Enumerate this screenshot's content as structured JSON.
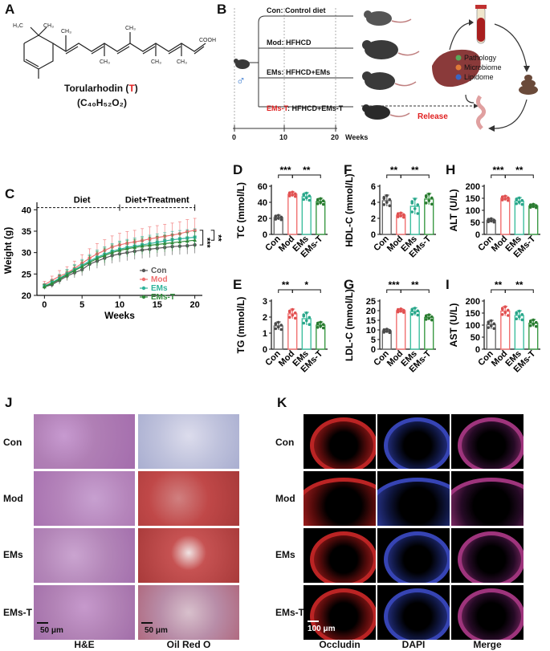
{
  "panels": {
    "A": "A",
    "B": "B",
    "C": "C",
    "D": "D",
    "E": "E",
    "F": "F",
    "G": "G",
    "H": "H",
    "I": "I",
    "J": "J",
    "K": "K"
  },
  "panel_a": {
    "name_prefix": "Torularhodin (",
    "name_letter": "T",
    "name_suffix": ")",
    "formula": "(C₄₀H₅₂O₂)",
    "cooh": "COOH",
    "ch3": "CH₃",
    "h3c": "H₃C"
  },
  "panel_b": {
    "groups": [
      {
        "label": "Con: Control diet",
        "color": "#111111"
      },
      {
        "label": "Mod: HFHCD",
        "color": "#111111"
      },
      {
        "label": "EMs: HFHCD+EMs",
        "color": "#111111"
      },
      {
        "label_red": "EMs-T",
        "label_rest": ": HFHCD+EMs-T"
      }
    ],
    "release": "Release",
    "axis_label": "Weeks",
    "ticks": [
      "0",
      "10",
      "20"
    ],
    "legend": [
      {
        "label": "Pathology",
        "color": "#5aa85a"
      },
      {
        "label": "Microbiome",
        "color": "#e07a38"
      },
      {
        "label": "Lipidome",
        "color": "#3a66c4"
      }
    ],
    "male_symbol": "♂"
  },
  "chart_data": [
    {
      "type": "line",
      "panel": "C",
      "ylabel": "Weight (g)",
      "xlabel": "Weeks",
      "x": [
        0,
        1,
        2,
        3,
        4,
        5,
        6,
        7,
        8,
        9,
        10,
        11,
        12,
        13,
        14,
        15,
        16,
        17,
        18,
        19,
        20
      ],
      "xticks": [
        "0",
        "5",
        "10",
        "15",
        "20"
      ],
      "yticks": [
        "20",
        "25",
        "30",
        "35",
        "40"
      ],
      "ylim": [
        20,
        41
      ],
      "xlim": [
        -1,
        21
      ],
      "phases": [
        "Diet",
        "Diet+Treatment"
      ],
      "significance": [
        "***",
        "**"
      ],
      "series": [
        {
          "name": "Con",
          "color": "#555555",
          "marker": "circle",
          "values": [
            22.0,
            22.5,
            23.5,
            24.5,
            25.3,
            26.0,
            27.3,
            28.0,
            28.7,
            29.3,
            29.7,
            30.0,
            30.3,
            30.6,
            30.8,
            31.0,
            31.2,
            31.4,
            31.5,
            31.6,
            31.8
          ]
        },
        {
          "name": "Mod",
          "color": "#f07070",
          "marker": "circle",
          "values": [
            22.5,
            23.5,
            24.5,
            25.2,
            26.3,
            27.5,
            28.7,
            29.7,
            30.5,
            31.3,
            31.8,
            32.2,
            32.5,
            32.8,
            33.2,
            33.5,
            33.8,
            34.1,
            34.4,
            34.9,
            35.2
          ]
        },
        {
          "name": "EMs",
          "color": "#2fb39a",
          "marker": "square",
          "values": [
            22.2,
            23.0,
            24.0,
            25.0,
            26.0,
            27.0,
            28.0,
            28.9,
            29.6,
            30.3,
            30.8,
            31.2,
            31.5,
            31.8,
            32.1,
            32.4,
            32.7,
            33.0,
            33.2,
            33.4,
            33.6
          ]
        },
        {
          "name": "EMs-T",
          "color": "#2f8a3a",
          "marker": "triangle",
          "values": [
            22.0,
            22.8,
            23.8,
            24.8,
            25.8,
            26.7,
            27.7,
            28.6,
            29.3,
            30.0,
            30.5,
            30.9,
            31.2,
            31.5,
            31.7,
            31.9,
            32.1,
            32.3,
            32.5,
            32.7,
            32.9
          ]
        }
      ],
      "error": [
        0.8,
        1.0,
        1.3,
        1.5,
        1.7,
        2.0,
        2.2,
        2.4,
        2.5,
        2.6,
        2.7,
        2.7,
        2.7,
        2.8,
        2.8,
        2.8,
        2.8,
        2.8,
        2.8,
        2.8,
        2.8
      ]
    },
    {
      "type": "bar",
      "panel": "D",
      "ylabel": "TC (mmol/L)",
      "ylim": [
        0,
        60
      ],
      "yticks": [
        "0",
        "20",
        "40",
        "60"
      ],
      "categories": [
        "Con",
        "Mod",
        "EMs",
        "EMs-T"
      ],
      "values": [
        21,
        50,
        47,
        41
      ],
      "err": [
        3,
        3,
        5,
        4
      ],
      "comparisons": [
        {
          "from": 0,
          "to": 1,
          "label": "***"
        },
        {
          "from": 1,
          "to": 3,
          "label": "**"
        }
      ]
    },
    {
      "type": "bar",
      "panel": "E",
      "ylabel": "TG (mmol/L)",
      "ylim": [
        0,
        3
      ],
      "yticks": [
        "0",
        "1",
        "2",
        "3"
      ],
      "categories": [
        "Con",
        "Mod",
        "EMs",
        "EMs-T"
      ],
      "values": [
        1.45,
        2.2,
        1.9,
        1.5
      ],
      "err": [
        0.25,
        0.3,
        0.4,
        0.2
      ],
      "comparisons": [
        {
          "from": 0,
          "to": 1,
          "label": "**"
        },
        {
          "from": 1,
          "to": 3,
          "label": "*"
        }
      ]
    },
    {
      "type": "bar",
      "panel": "F",
      "ylabel": "HDL-C (mmol/L)",
      "ylim": [
        0,
        6
      ],
      "yticks": [
        "0",
        "2",
        "4",
        "6"
      ],
      "categories": [
        "Con",
        "Mod",
        "EMs",
        "EMs-T"
      ],
      "values": [
        4.2,
        2.4,
        3.5,
        4.4
      ],
      "err": [
        0.7,
        0.3,
        1.0,
        0.7
      ],
      "comparisons": [
        {
          "from": 0,
          "to": 1,
          "label": "**"
        },
        {
          "from": 1,
          "to": 3,
          "label": "**"
        }
      ]
    },
    {
      "type": "bar",
      "panel": "G",
      "ylabel": "LDL-C (mmol/L)",
      "ylim": [
        0,
        25
      ],
      "yticks": [
        "0",
        "5",
        "10",
        "15",
        "20",
        "25"
      ],
      "categories": [
        "Con",
        "Mod",
        "EMs",
        "EMs-T"
      ],
      "values": [
        9.5,
        20,
        19.5,
        16.5
      ],
      "err": [
        1,
        1,
        2,
        1.5
      ],
      "comparisons": [
        {
          "from": 0,
          "to": 1,
          "label": "***"
        },
        {
          "from": 1,
          "to": 3,
          "label": "**"
        }
      ]
    },
    {
      "type": "bar",
      "panel": "H",
      "ylabel": "ALT (U/L)",
      "ylim": [
        0,
        200
      ],
      "yticks": [
        "0",
        "50",
        "100",
        "150",
        "200"
      ],
      "categories": [
        "Con",
        "Mod",
        "EMs",
        "EMs-T"
      ],
      "values": [
        58,
        150,
        138,
        118
      ],
      "err": [
        8,
        10,
        15,
        8
      ],
      "comparisons": [
        {
          "from": 0,
          "to": 1,
          "label": "***"
        },
        {
          "from": 1,
          "to": 3,
          "label": "**"
        }
      ]
    },
    {
      "type": "bar",
      "panel": "I",
      "ylabel": "AST (U/L)",
      "ylim": [
        0,
        200
      ],
      "yticks": [
        "0",
        "50",
        "100",
        "150",
        "200"
      ],
      "categories": [
        "Con",
        "Mod",
        "EMs",
        "EMs-T"
      ],
      "values": [
        102,
        158,
        140,
        108
      ],
      "err": [
        18,
        20,
        20,
        15
      ],
      "comparisons": [
        {
          "from": 0,
          "to": 1,
          "label": "**"
        },
        {
          "from": 1,
          "to": 3,
          "label": "**"
        }
      ]
    }
  ],
  "panel_j": {
    "rows": [
      "Con",
      "Mod",
      "EMs",
      "EMs-T"
    ],
    "cols": [
      "H&E",
      "Oil Red O"
    ],
    "scale_bar": "50 μm"
  },
  "panel_k": {
    "rows": [
      "Con",
      "Mod",
      "EMs",
      "EMs-T"
    ],
    "cols": [
      "Occludin",
      "DAPI",
      "Merge"
    ],
    "scale_bar": "100 μm"
  },
  "colors": {
    "red_accent": "#e02020",
    "he_pink": "#b77bb0",
    "oil_red": "#c03a3a",
    "occludin": "#d02828",
    "dapi": "#3c4cc8"
  }
}
